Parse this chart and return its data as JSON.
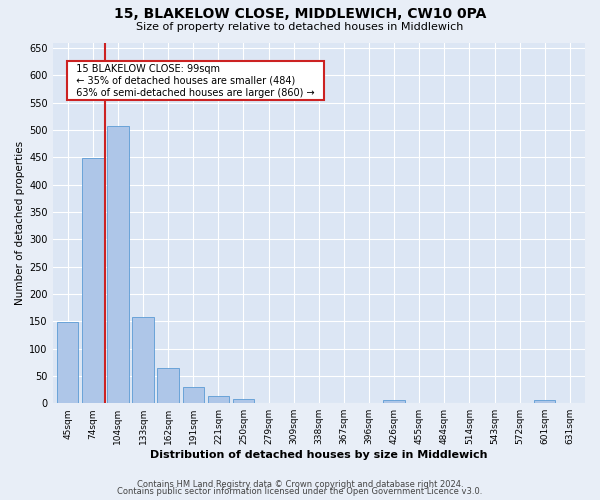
{
  "title": "15, BLAKELOW CLOSE, MIDDLEWICH, CW10 0PA",
  "subtitle": "Size of property relative to detached houses in Middlewich",
  "xlabel": "Distribution of detached houses by size in Middlewich",
  "ylabel": "Number of detached properties",
  "footer_line1": "Contains HM Land Registry data © Crown copyright and database right 2024.",
  "footer_line2": "Contains public sector information licensed under the Open Government Licence v3.0.",
  "annotation_title": "15 BLAKELOW CLOSE: 99sqm",
  "annotation_line1": "← 35% of detached houses are smaller (484)",
  "annotation_line2": "63% of semi-detached houses are larger (860) →",
  "bin_labels": [
    "45sqm",
    "74sqm",
    "104sqm",
    "133sqm",
    "162sqm",
    "191sqm",
    "221sqm",
    "250sqm",
    "279sqm",
    "309sqm",
    "338sqm",
    "367sqm",
    "396sqm",
    "426sqm",
    "455sqm",
    "484sqm",
    "514sqm",
    "543sqm",
    "572sqm",
    "601sqm",
    "631sqm"
  ],
  "bar_values": [
    148,
    449,
    507,
    158,
    65,
    30,
    13,
    8,
    0,
    0,
    0,
    0,
    0,
    5,
    0,
    0,
    0,
    0,
    0,
    5,
    0
  ],
  "bar_color": "#aec6e8",
  "bar_edge_color": "#5b9bd5",
  "highlight_color": "#cc2222",
  "red_line_x": 1.5,
  "ylim": [
    0,
    660
  ],
  "yticks": [
    0,
    50,
    100,
    150,
    200,
    250,
    300,
    350,
    400,
    450,
    500,
    550,
    600,
    650
  ],
  "background_color": "#e8eef7",
  "plot_bg_color": "#dce6f4",
  "grid_color": "#ffffff"
}
